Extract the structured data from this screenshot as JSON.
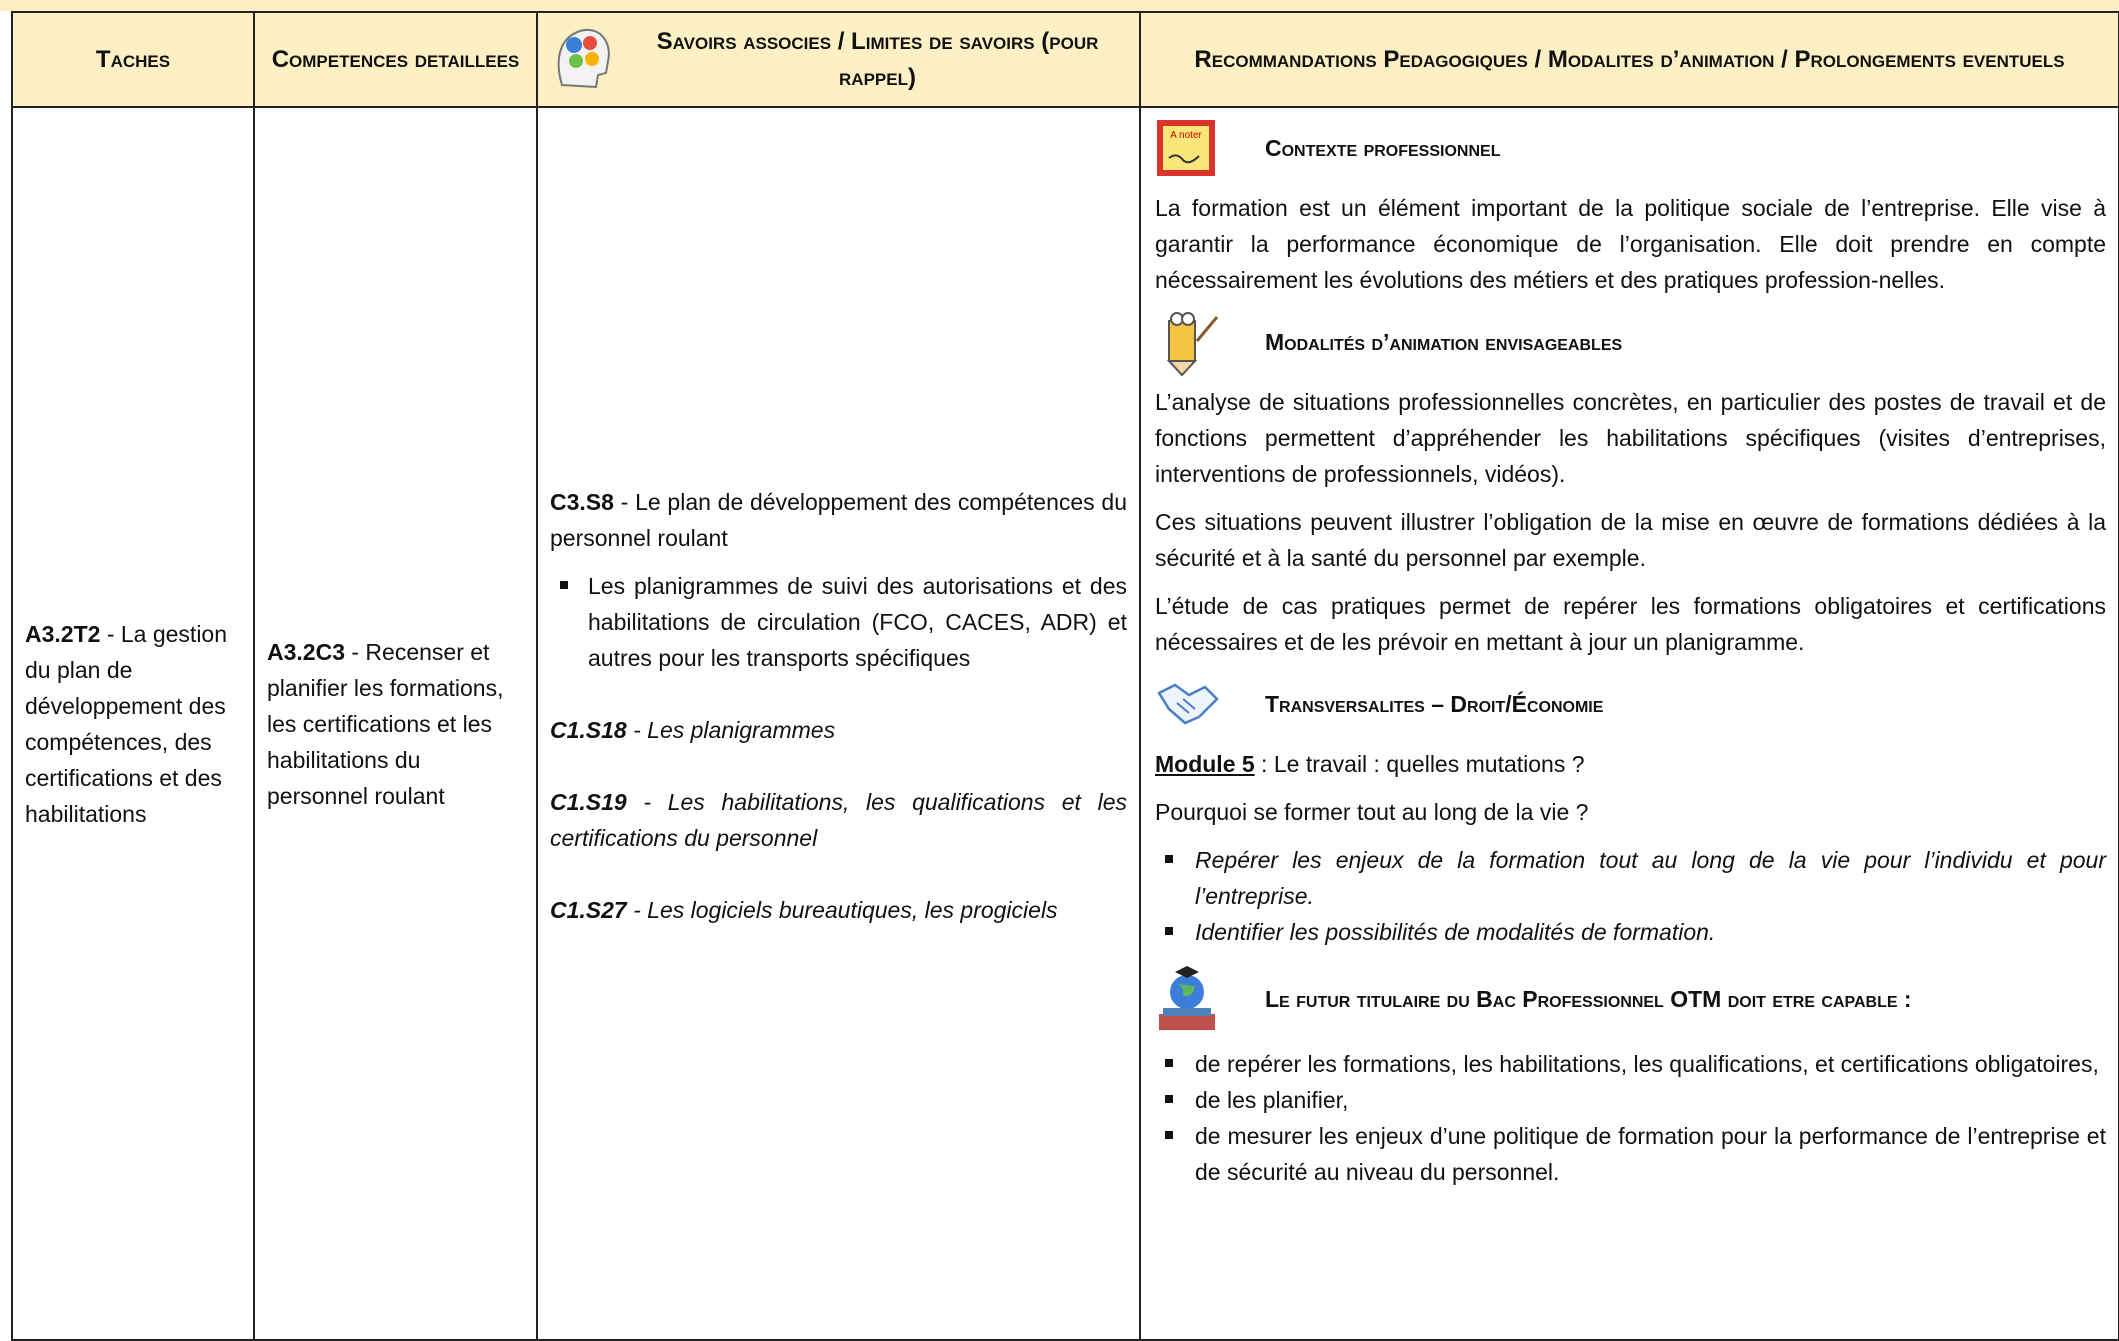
{
  "header": [
    "Taches",
    "Competences detaillees",
    "Savoirs associes / Limites de savoirs (pour rappel)",
    "Recommandations Pedagogiques / Modalites d’animation / Prolongements eventuels"
  ],
  "row": {
    "tache": {
      "code": "A3.2T2",
      "text": " - La gestion du plan de développement des compétences, des certifications et des habilitations"
    },
    "competence": {
      "code": "A3.2C3",
      "text": " - Recenser et planifier les formations, les certifications et les habilitations du personnel roulant"
    },
    "savoirs": {
      "main": {
        "code": "C3.S8",
        "text": " - Le plan de développement des compétences du personnel roulant"
      },
      "bullets": [
        "Les planigrammes de suivi des autorisations et des habilitations de circulation (FCO, CACES, ADR) et autres pour les transports spécifiques"
      ],
      "refs": [
        {
          "code": "C1.S18",
          "text": " - Les planigrammes"
        },
        {
          "code": "C1.S19",
          "text": " - Les habilitations, les qualifications et les certifications du personnel"
        },
        {
          "code": "C1.S27",
          "text": " - Les logiciels bureautiques, les progiciels"
        }
      ]
    },
    "recommandations": {
      "note_icon": "A noter",
      "contexte": {
        "title": "Contexte professionnel",
        "paragraph": "La formation est un élément important de la politique sociale de l’entreprise. Elle vise à garantir la performance économique de l’organisation. Elle doit prendre en compte nécessairement les évolutions des métiers et des pratiques profession-nelles."
      },
      "modalites": {
        "title": "Modalités d’animation envisageables",
        "paragraphs": [
          "L’analyse de situations professionnelles concrètes, en particulier des postes de travail et de fonctions permettent d’appréhender les habilitations spécifiques (visites d’entreprises, interventions de professionnels, vidéos).",
          "Ces situations peuvent illustrer l’obligation de la mise en œuvre de formations dédiées à la sécurité et à la santé du personnel par exemple.",
          "L’étude de cas pratiques permet de repérer les formations obligatoires et certifications nécessaires et de les prévoir en mettant à jour un planigramme."
        ]
      },
      "transversalites": {
        "title": "Transversalites – Droit/Économie",
        "module": {
          "label": "Module 5",
          "text": " : Le travail : quelles mutations ?"
        },
        "question": "Pourquoi se former tout au long de la vie ?",
        "bullets": [
          "Repérer les enjeux de la formation tout au long de la vie pour l’individu et pour l’entreprise.",
          "Identifier les possibilités de modalités de formation."
        ]
      },
      "capable": {
        "title": "Le futur titulaire du Bac Professionnel OTM doit etre capable :",
        "bullets": [
          "de repérer les formations, les habilitations, les qualifications, et certifications obligatoires,",
          "de les planifier,",
          "de mesurer les enjeux d’une politique de formation pour la performance de l’entreprise et de sécurité au niveau du personnel."
        ]
      }
    }
  }
}
